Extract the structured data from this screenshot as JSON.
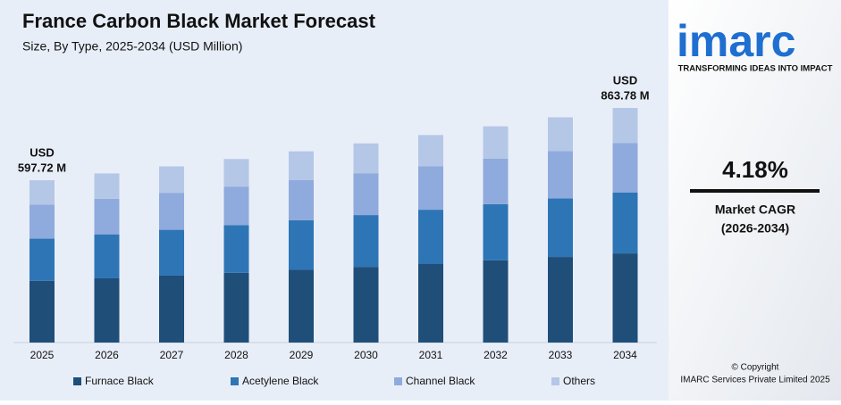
{
  "chart_data": {
    "type": "stacked-bar",
    "title": "France Carbon Black Market Forecast",
    "subtitle": "Size, By Type, 2025-2034 (USD Million)",
    "categories": [
      "2025",
      "2026",
      "2027",
      "2028",
      "2029",
      "2030",
      "2031",
      "2032",
      "2033",
      "2034"
    ],
    "series": [
      {
        "name": "Furnace Black",
        "color": "#1f4e79",
        "values": [
          227.1,
          236.6,
          246.5,
          256.8,
          267.6,
          278.7,
          290.4,
          302.5,
          315.1,
          328.2
        ]
      },
      {
        "name": "Acetylene Black",
        "color": "#2e75b6",
        "values": [
          155.4,
          161.9,
          168.7,
          175.7,
          183.1,
          190.7,
          198.7,
          207.0,
          215.6,
          224.6
        ]
      },
      {
        "name": "Channel Black",
        "color": "#8faadc",
        "values": [
          125.5,
          130.8,
          136.2,
          141.9,
          147.9,
          154.0,
          160.5,
          167.2,
          174.2,
          181.4
        ]
      },
      {
        "name": "Others",
        "color": "#b4c7e7",
        "values": [
          89.7,
          93.4,
          97.3,
          101.4,
          105.6,
          110.0,
          114.6,
          119.4,
          124.4,
          129.6
        ]
      }
    ],
    "ylim": [
      0,
      900
    ],
    "annotations": [
      {
        "category": "2025",
        "prefix": "USD",
        "value": 597.72,
        "label": "597.72 M"
      },
      {
        "category": "2034",
        "prefix": "USD",
        "value": 863.78,
        "label": "863.78 M"
      }
    ]
  },
  "sidebar": {
    "logo": "imarc",
    "tagline": "TRANSFORMING IDEAS INTO IMPACT",
    "cagr": "4.18%",
    "cagr_label": "Market CAGR",
    "cagr_period": "(2026-2034)",
    "copyright": "© Copyright",
    "company": "IMARC Services Private Limited 2025"
  }
}
